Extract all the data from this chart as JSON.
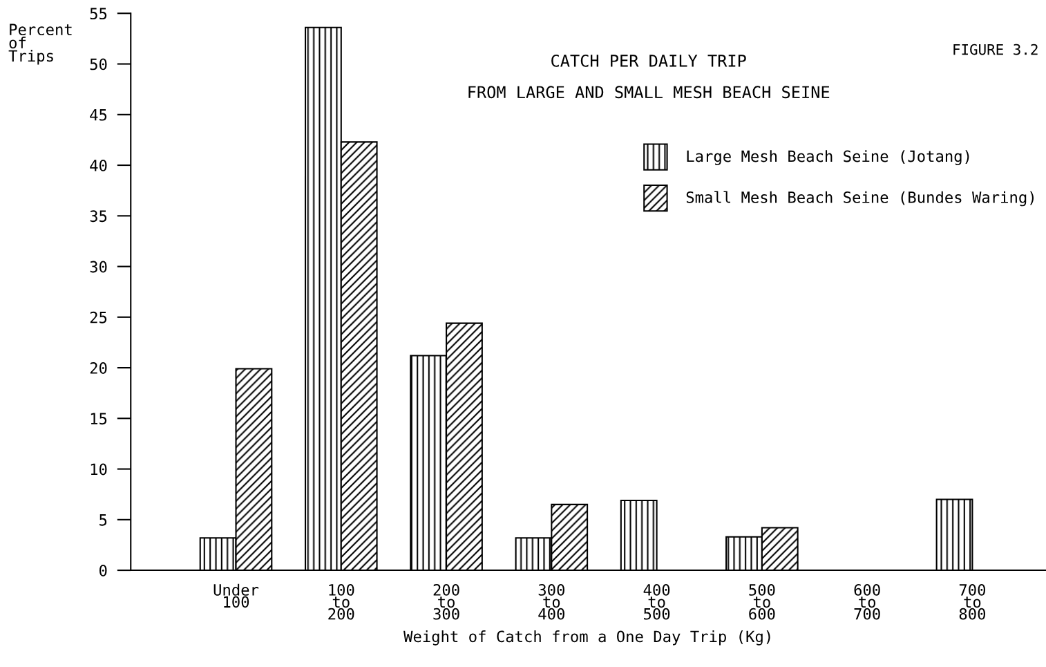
{
  "chart_data": {
    "type": "bar",
    "title": "CATCH PER DAILY TRIP",
    "subtitle": "FROM LARGE AND SMALL MESH BEACH SEINE",
    "xlabel": "Weight of Catch from a One Day Trip (Kg)",
    "ylabel": "Percent\nof\nTrips",
    "categories": [
      "Under\n100",
      "100\nto\n200",
      "200\nto\n300",
      "300\nto\n400",
      "400\nto\n500",
      "500\nto\n600",
      "600\nto\n700",
      "700\nto\n800"
    ],
    "series": [
      {
        "name": "Large Mesh Beach Seine (Jotang)",
        "color": "#000000",
        "values": [
          3.2,
          53.6,
          21.2,
          3.2,
          6.9,
          3.3,
          null,
          7.0
        ]
      },
      {
        "name": "Small Mesh Beach Seine (Bundes Waring)",
        "color": "#000000",
        "values": [
          19.9,
          42.3,
          24.4,
          6.5,
          null,
          4.2,
          null,
          null
        ]
      }
    ],
    "ylim": [
      0,
      55
    ],
    "yticks": [
      0,
      5,
      10,
      15,
      20,
      25,
      30,
      35,
      40,
      45,
      50,
      55
    ],
    "grid": false,
    "legend": "top right",
    "annotations": [
      "FIGURE 3.2"
    ]
  }
}
